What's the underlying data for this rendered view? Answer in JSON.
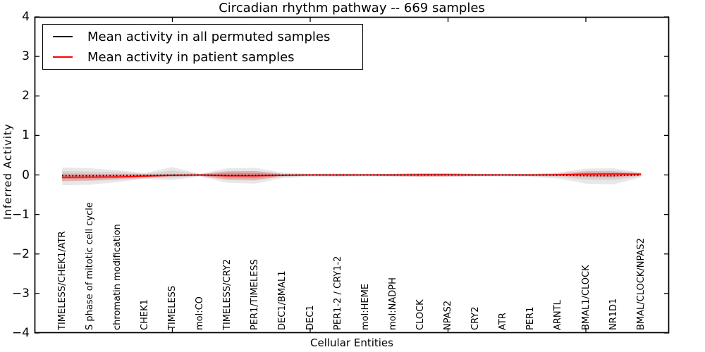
{
  "chart_data": {
    "type": "line",
    "title": "Circadian rhythm pathway -- 669 samples",
    "xlabel": "Cellular Entities",
    "ylabel": "Inferred Activity",
    "ylim": [
      -4,
      4
    ],
    "yticks": [
      4,
      3,
      2,
      1,
      0,
      -1,
      -2,
      -3,
      -4
    ],
    "xtick_positions": [
      5,
      10,
      15,
      20
    ],
    "grid": false,
    "legend_position": "upper-left",
    "categories": [
      "TIMELESS/CHEK1/ATR",
      "S phase of mitotic cell cycle",
      "chromatin modification",
      "CHEK1",
      "TIMELESS",
      "mol:CO",
      "TIMELESS/CRY2",
      "PER1/TIMELESS",
      "DEC1/BMAL1",
      "DEC1",
      "PER1-2 / CRY1-2",
      "mol:HEME",
      "mol:NADPH",
      "CLOCK",
      "NPAS2",
      "CRY2",
      "ATR",
      "PER1",
      "ARNTL",
      "BMAL1/CLOCK",
      "NR1D1",
      "BMAL/CLOCK/NPAS2"
    ],
    "legend": [
      {
        "label": "Mean activity in all permuted samples",
        "color": "#000000"
      },
      {
        "label": "Mean activity in patient samples",
        "color": "#ff0000"
      }
    ],
    "series": [
      {
        "name": "Mean activity in all permuted samples",
        "color": "#000000",
        "style": "dotted",
        "values": [
          -0.02,
          -0.02,
          -0.015,
          -0.01,
          0,
          0,
          -0.01,
          -0.01,
          0,
          0,
          0,
          0,
          0,
          0,
          0,
          0,
          0,
          0,
          -0.005,
          -0.02,
          -0.02,
          0
        ]
      },
      {
        "name": "Mean activity in patient samples",
        "color": "#ff0000",
        "style": "solid",
        "values": [
          -0.06,
          -0.055,
          -0.05,
          -0.03,
          -0.01,
          0,
          -0.02,
          -0.02,
          -0.01,
          0,
          0,
          0,
          0,
          0.005,
          0.005,
          0,
          0,
          0,
          0.005,
          0.02,
          0.025,
          0.02
        ]
      }
    ],
    "bands": [
      {
        "name": "permuted-range-outer",
        "color": "#000000",
        "opacity": 0.09,
        "upper": [
          0.19,
          0.17,
          0.12,
          0.05,
          0.2,
          0.03,
          0.17,
          0.18,
          0.06,
          0.03,
          0.04,
          0.03,
          0.03,
          0.04,
          0.04,
          0.03,
          0.03,
          0.03,
          0.06,
          0.16,
          0.17,
          0.06
        ],
        "lower": [
          -0.26,
          -0.25,
          -0.18,
          -0.1,
          -0.13,
          -0.04,
          -0.2,
          -0.22,
          -0.08,
          -0.05,
          -0.06,
          -0.04,
          -0.05,
          -0.05,
          -0.05,
          -0.04,
          -0.04,
          -0.05,
          -0.09,
          -0.22,
          -0.24,
          -0.06
        ]
      },
      {
        "name": "permuted-range-inner",
        "color": "#000000",
        "opacity": 0.08,
        "upper": [
          0.1,
          0.09,
          0.07,
          0.03,
          0.11,
          0.02,
          0.09,
          0.1,
          0.03,
          0.02,
          0.02,
          0.02,
          0.02,
          0.02,
          0.02,
          0.02,
          0.02,
          0.02,
          0.03,
          0.09,
          0.09,
          0.03
        ],
        "lower": [
          -0.15,
          -0.14,
          -0.1,
          -0.06,
          -0.07,
          -0.02,
          -0.11,
          -0.12,
          -0.04,
          -0.03,
          -0.03,
          -0.02,
          -0.03,
          -0.03,
          -0.03,
          -0.02,
          -0.02,
          -0.03,
          -0.05,
          -0.12,
          -0.13,
          -0.03
        ]
      },
      {
        "name": "patient-range-outer",
        "color": "#ff0000",
        "opacity": 0.16,
        "upper": [
          0.04,
          0.03,
          0.02,
          0.02,
          0.03,
          0.02,
          0.1,
          0.1,
          0.03,
          0.02,
          0.02,
          0.02,
          0.03,
          0.05,
          0.05,
          0.03,
          0.02,
          0.02,
          0.04,
          0.1,
          0.1,
          0.06
        ],
        "lower": [
          -0.16,
          -0.15,
          -0.12,
          -0.08,
          -0.05,
          -0.03,
          -0.13,
          -0.14,
          -0.04,
          -0.02,
          -0.03,
          -0.02,
          -0.03,
          -0.05,
          -0.04,
          -0.03,
          -0.02,
          -0.03,
          -0.03,
          -0.06,
          -0.07,
          -0.02
        ]
      },
      {
        "name": "patient-range-inner",
        "color": "#ff0000",
        "opacity": 0.25,
        "upper": [
          0.01,
          0.01,
          0.01,
          0.01,
          0.01,
          0.01,
          0.05,
          0.05,
          0.01,
          0.01,
          0.01,
          0.01,
          0.01,
          0.02,
          0.02,
          0.01,
          0.01,
          0.01,
          0.02,
          0.05,
          0.05,
          0.03
        ],
        "lower": [
          -0.1,
          -0.09,
          -0.08,
          -0.05,
          -0.03,
          -0.02,
          -0.07,
          -0.08,
          -0.02,
          -0.01,
          -0.02,
          -0.01,
          -0.02,
          -0.03,
          -0.02,
          -0.02,
          -0.01,
          -0.02,
          -0.02,
          -0.03,
          -0.04,
          -0.01
        ]
      }
    ]
  }
}
